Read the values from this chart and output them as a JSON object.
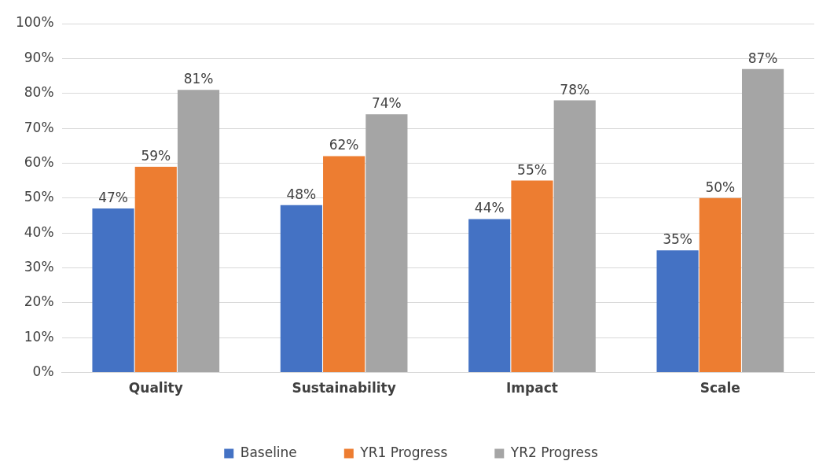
{
  "chart_data": {
    "type": "bar",
    "categories": [
      "Quality",
      "Sustainability",
      "Impact",
      "Scale"
    ],
    "series": [
      {
        "name": "Baseline",
        "color": "#4472c4",
        "values": [
          47,
          48,
          44,
          35
        ],
        "value_labels": [
          "47%",
          "48%",
          "44%",
          "35%"
        ]
      },
      {
        "name": "YR1 Progress",
        "color": "#ed7d31",
        "values": [
          59,
          62,
          55,
          50
        ],
        "value_labels": [
          "59%",
          "62%",
          "55%",
          "50%"
        ]
      },
      {
        "name": "YR2 Progress",
        "color": "#a5a5a5",
        "values": [
          81,
          74,
          78,
          87
        ],
        "value_labels": [
          "81%",
          "74%",
          "78%",
          "87%"
        ]
      }
    ],
    "ylim": [
      0,
      100
    ],
    "yticks": [
      {
        "value": 0,
        "label": "0%"
      },
      {
        "value": 10,
        "label": "10%"
      },
      {
        "value": 20,
        "label": "20%"
      },
      {
        "value": 30,
        "label": "30%"
      },
      {
        "value": 40,
        "label": "40%"
      },
      {
        "value": 50,
        "label": "50%"
      },
      {
        "value": 60,
        "label": "60%"
      },
      {
        "value": 70,
        "label": "70%"
      },
      {
        "value": 80,
        "label": "80%"
      },
      {
        "value": 90,
        "label": "90%"
      },
      {
        "value": 100,
        "label": "100%"
      }
    ],
    "grid": "y",
    "legend": "bottom"
  }
}
